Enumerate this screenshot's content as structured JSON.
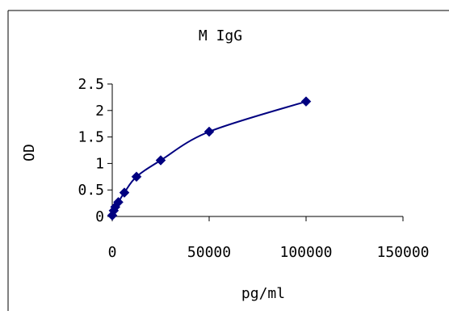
{
  "chart_data": {
    "type": "scatter",
    "title": "M IgG",
    "xlabel": "pg/ml",
    "ylabel": "OD",
    "xlim": [
      0,
      150000
    ],
    "ylim": [
      0,
      2.5
    ],
    "xticks": [
      "0",
      "50000",
      "100000",
      "150000"
    ],
    "yticks": [
      "0",
      "0.5",
      "1",
      "1.5",
      "2",
      "2.5"
    ],
    "grid": false,
    "legend": "none",
    "fitted_curve": true,
    "series": [
      {
        "x": [
          0,
          781,
          1563,
          3125,
          6250,
          12500,
          25000,
          50000,
          100000
        ],
        "y": [
          0.02,
          0.11,
          0.18,
          0.27,
          0.45,
          0.75,
          1.06,
          1.6,
          2.17
        ]
      }
    ],
    "colors": {
      "marker": "#000080",
      "line": "#000080",
      "axis": "#000000"
    }
  }
}
